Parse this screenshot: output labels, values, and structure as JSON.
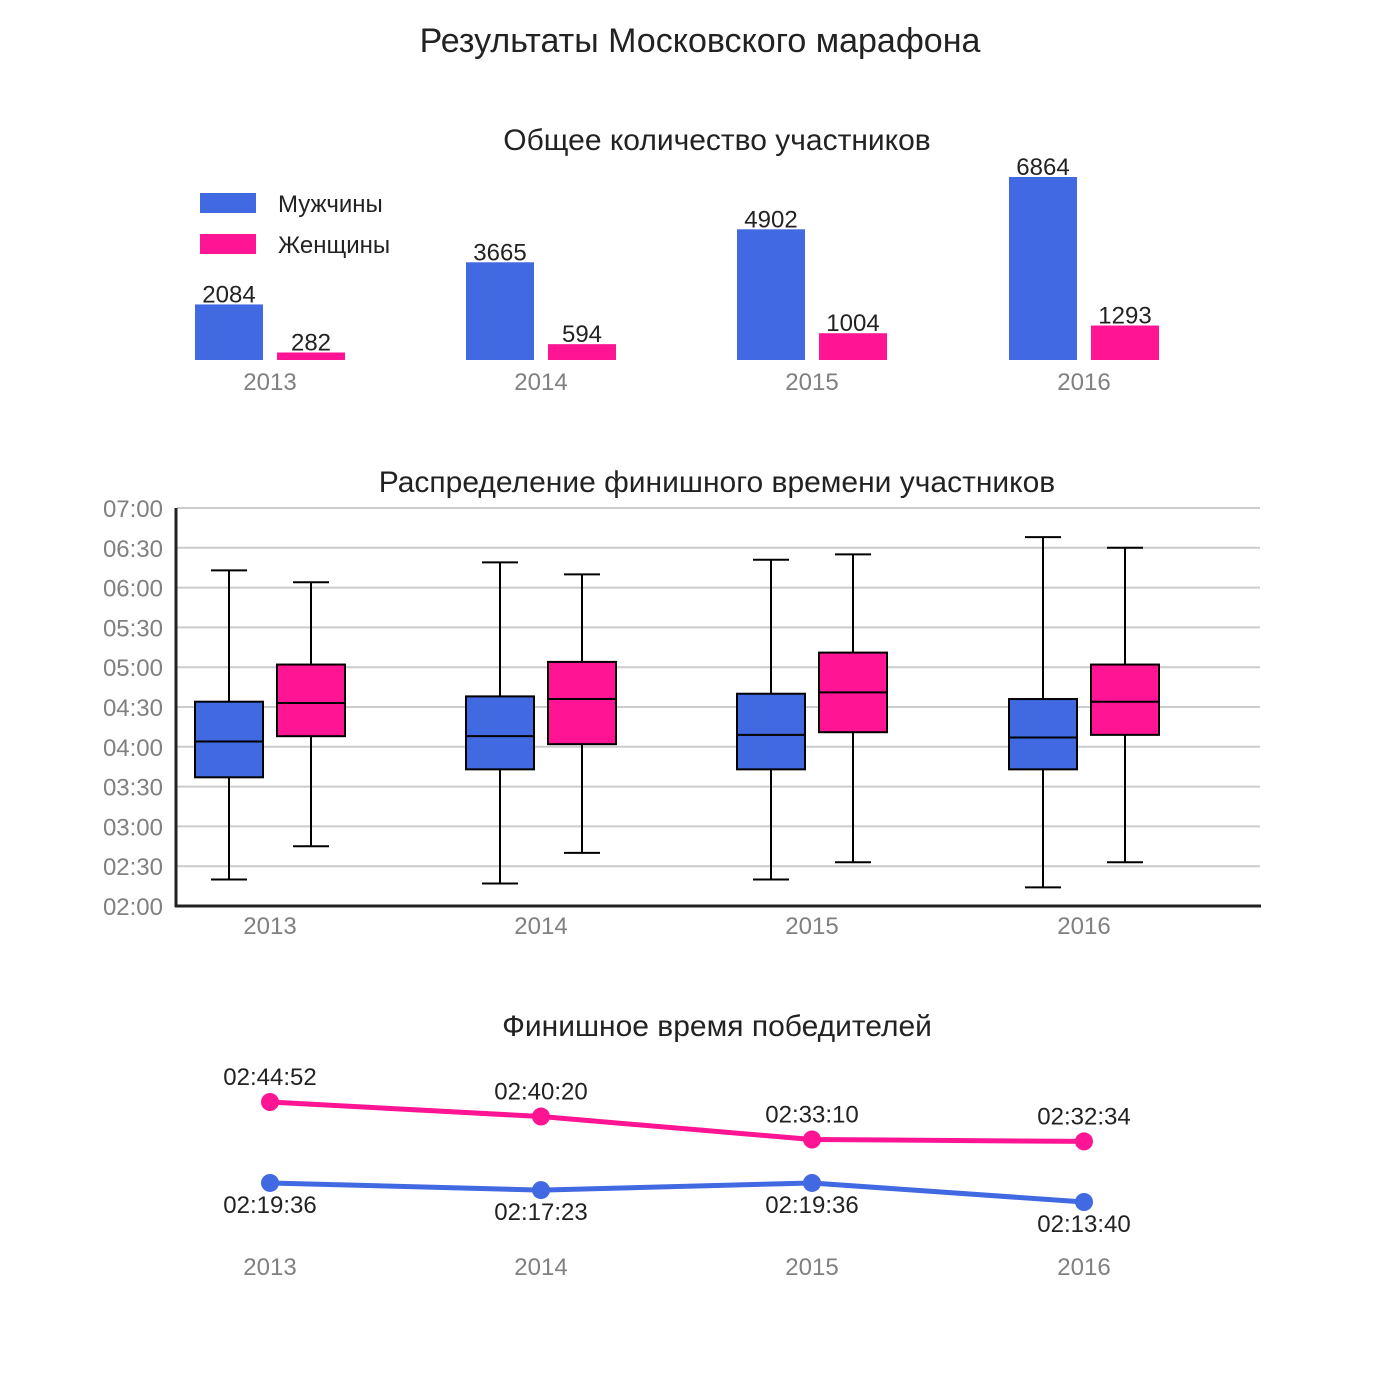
{
  "title": "Результаты Московского марафона",
  "colors": {
    "men": "#4169e1",
    "women": "#ff1493",
    "grid": "#cccccc",
    "axis": "#222222",
    "tick": "#808080"
  },
  "chart_data": [
    {
      "type": "bar",
      "title": "Общее количество участников",
      "categories": [
        "2013",
        "2014",
        "2015",
        "2016"
      ],
      "series": [
        {
          "name": "Мужчины",
          "values": [
            2084,
            3665,
            4902,
            6864
          ]
        },
        {
          "name": "Женщины",
          "values": [
            282,
            594,
            1004,
            1293
          ]
        }
      ],
      "data_labels": [
        "2084",
        "3665",
        "4902",
        "6864",
        "282",
        "594",
        "1004",
        "1293"
      ],
      "legend_position": "top-left",
      "grid": false
    },
    {
      "type": "box",
      "title": "Распределение финишного времени участников",
      "categories": [
        "2013",
        "2014",
        "2015",
        "2016"
      ],
      "yticks": [
        "02:00",
        "02:30",
        "03:00",
        "03:30",
        "04:00",
        "04:30",
        "05:00",
        "05:30",
        "06:00",
        "06:30",
        "07:00"
      ],
      "ylim": [
        "02:00",
        "07:00"
      ],
      "grid": true,
      "series": [
        {
          "name": "Мужчины",
          "boxes": [
            {
              "min": "02:20",
              "q1": "03:37",
              "median": "04:04",
              "q3": "04:34",
              "max": "06:13"
            },
            {
              "min": "02:17",
              "q1": "03:43",
              "median": "04:08",
              "q3": "04:38",
              "max": "06:19"
            },
            {
              "min": "02:20",
              "q1": "03:43",
              "median": "04:09",
              "q3": "04:40",
              "max": "06:21"
            },
            {
              "min": "02:14",
              "q1": "03:43",
              "median": "04:07",
              "q3": "04:36",
              "max": "06:38"
            }
          ]
        },
        {
          "name": "Женщины",
          "boxes": [
            {
              "min": "02:45",
              "q1": "04:08",
              "median": "04:33",
              "q3": "05:02",
              "max": "06:04"
            },
            {
              "min": "02:40",
              "q1": "04:02",
              "median": "04:36",
              "q3": "05:04",
              "max": "06:10"
            },
            {
              "min": "02:33",
              "q1": "04:11",
              "median": "04:41",
              "q3": "05:11",
              "max": "06:25"
            },
            {
              "min": "02:33",
              "q1": "04:09",
              "median": "04:34",
              "q3": "05:02",
              "max": "06:30"
            }
          ]
        }
      ]
    },
    {
      "type": "line",
      "title": "Финишное время победителей",
      "categories": [
        "2013",
        "2014",
        "2015",
        "2016"
      ],
      "grid": false,
      "series": [
        {
          "name": "Женщины",
          "values": [
            "02:44:52",
            "02:40:20",
            "02:33:10",
            "02:32:34"
          ]
        },
        {
          "name": "Мужчины",
          "values": [
            "02:19:36",
            "02:17:23",
            "02:19:36",
            "02:13:40"
          ]
        }
      ]
    }
  ]
}
